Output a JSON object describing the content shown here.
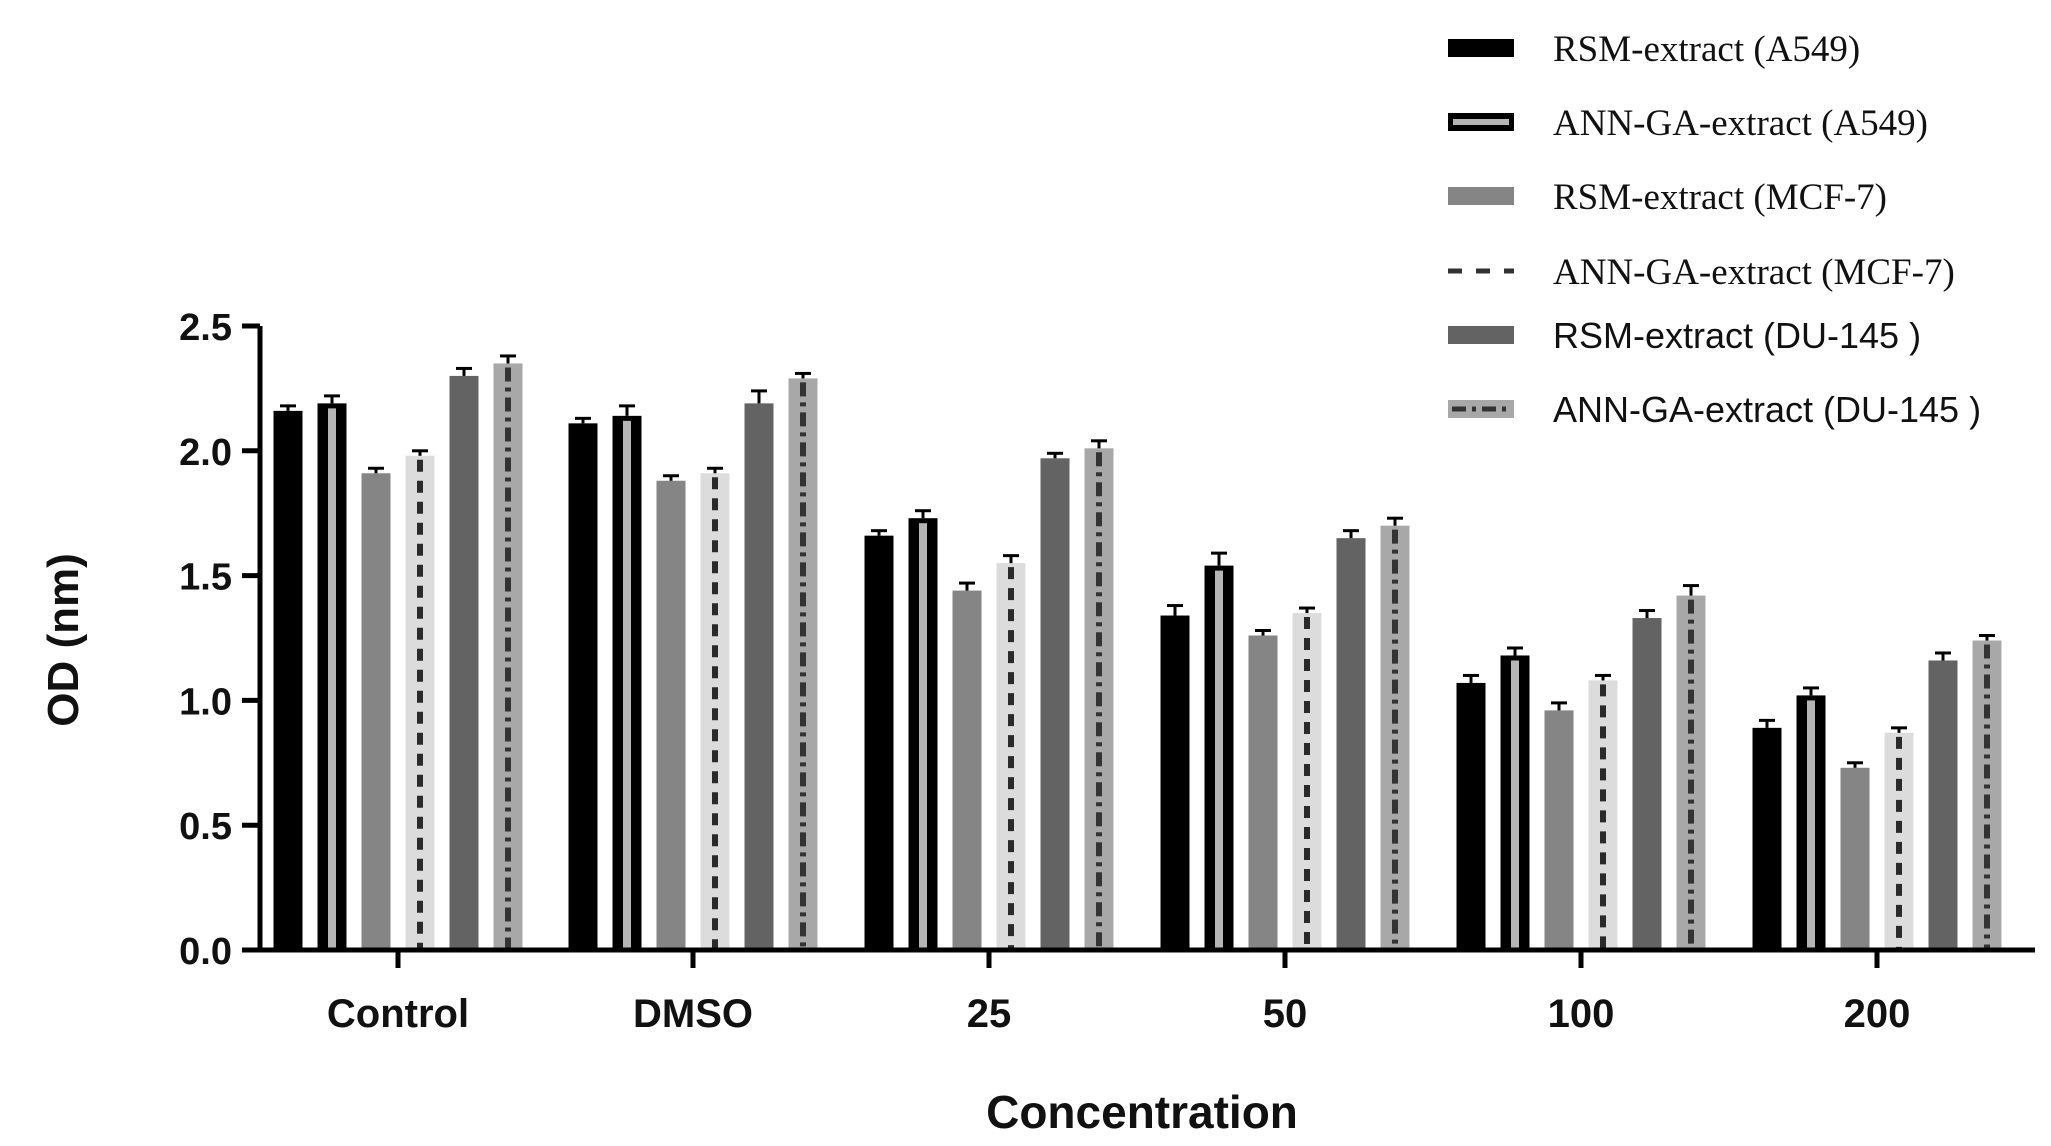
{
  "chart_data": {
    "type": "bar",
    "title": "",
    "xlabel": "Concentration",
    "ylabel": "OD (nm)",
    "ylim": [
      0,
      2.5
    ],
    "yticks": [
      "0.0",
      "0.5",
      "1.0",
      "1.5",
      "2.0",
      "2.5"
    ],
    "categories": [
      "Control",
      "DMSO",
      "25",
      "50",
      "100",
      "200"
    ],
    "legend_position": "top-right",
    "series": [
      {
        "name": "RSM-extract (A549)",
        "style": "solid",
        "fill": "#000000",
        "values": [
          2.16,
          2.11,
          1.66,
          1.34,
          1.07,
          0.89
        ],
        "errors": [
          0.02,
          0.02,
          0.02,
          0.04,
          0.03,
          0.03
        ]
      },
      {
        "name": "ANN-GA-extract (A549)",
        "style": "outlined",
        "fill": "#000000",
        "values": [
          2.19,
          2.14,
          1.73,
          1.54,
          1.18,
          1.02
        ],
        "errors": [
          0.03,
          0.04,
          0.03,
          0.05,
          0.03,
          0.03
        ]
      },
      {
        "name": "RSM-extract (MCF-7)",
        "style": "solid",
        "fill": "#858585",
        "values": [
          1.91,
          1.88,
          1.44,
          1.26,
          0.96,
          0.73
        ],
        "errors": [
          0.02,
          0.02,
          0.03,
          0.02,
          0.03,
          0.02
        ]
      },
      {
        "name": "ANN-GA-extract (MCF-7)",
        "style": "dashed",
        "fill": "#dcdcdc",
        "values": [
          1.98,
          1.91,
          1.55,
          1.35,
          1.08,
          0.87
        ],
        "errors": [
          0.02,
          0.02,
          0.03,
          0.02,
          0.02,
          0.02
        ]
      },
      {
        "name": "RSM-extract (DU-145 )",
        "style": "solid",
        "fill": "#636363",
        "values": [
          2.3,
          2.19,
          1.97,
          1.65,
          1.33,
          1.16
        ],
        "errors": [
          0.03,
          0.05,
          0.02,
          0.03,
          0.03,
          0.03
        ]
      },
      {
        "name": "ANN-GA-extract (DU-145 )",
        "style": "dashdot",
        "fill": "#a8a8a8",
        "values": [
          2.35,
          2.29,
          2.01,
          1.7,
          1.42,
          1.24
        ],
        "errors": [
          0.03,
          0.02,
          0.03,
          0.03,
          0.04,
          0.02
        ]
      }
    ]
  }
}
